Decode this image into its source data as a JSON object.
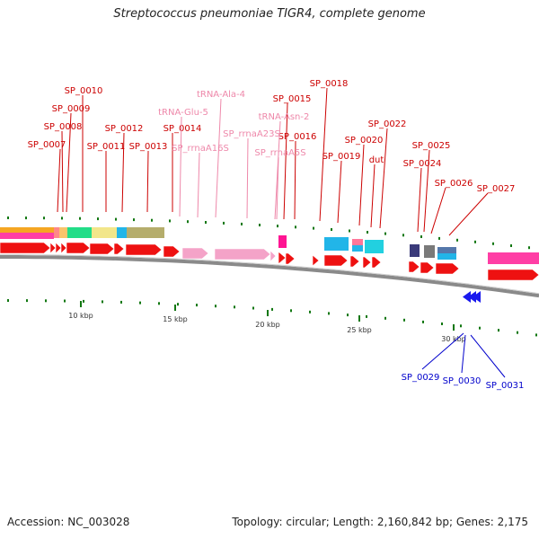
{
  "title": "Streptococcus pneumoniae TIGR4, complete genome",
  "footer": {
    "accession": "Accession: NC_003028",
    "summary": "Topology: circular; Length: 2,160,842 bp; Genes: 2,175"
  },
  "colors": {
    "forward_gene": "#ee1111",
    "reverse_gene": "#1a1aee",
    "rna": "#f4a3c8",
    "label_red": "#cc0000",
    "label_pink": "#ee88aa",
    "label_blue": "#0000cc",
    "tick": "#117711",
    "backbone": "#8a8a8a"
  },
  "scale": {
    "unit": "kbp",
    "major_ticks": [
      "10 kbp",
      "15 kbp",
      "20 kbp",
      "25 kbp",
      "30 kbp"
    ]
  },
  "labels": {
    "forward_genes": [
      "SP_0007",
      "SP_0008",
      "SP_0009",
      "SP_0010",
      "SP_0011",
      "SP_0012",
      "SP_0013",
      "SP_0014",
      "SP_0015",
      "SP_0016",
      "SP_0018",
      "SP_0019",
      "SP_0020",
      "dut",
      "SP_0022",
      "SP_0024",
      "SP_0025",
      "SP_0026",
      "SP_0027"
    ],
    "rna_features": [
      "tRNA-Glu-5",
      "SP_rrnaA16S",
      "tRNA-Ala-4",
      "SP_rrnaA23S",
      "tRNA-Asn-2",
      "SP_rrnaA5S"
    ],
    "reverse_genes": [
      "SP_0029",
      "SP_0030",
      "SP_0031"
    ]
  }
}
